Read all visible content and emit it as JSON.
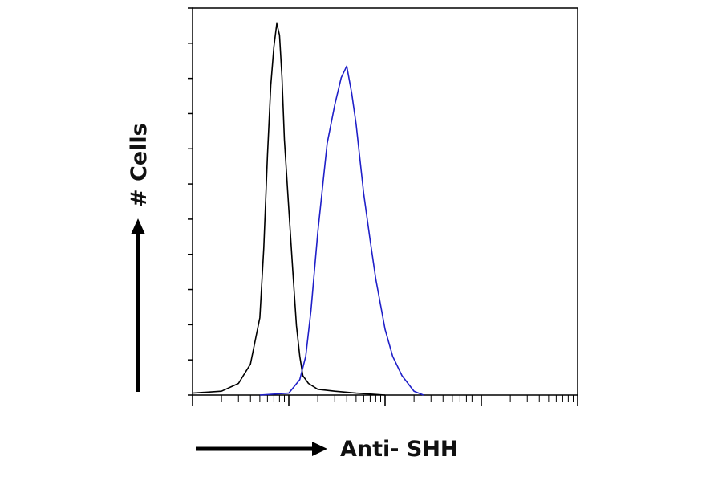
{
  "chart_data": {
    "type": "line",
    "title": "",
    "xlabel": "Anti- SHH",
    "ylabel": "# Cells",
    "x_scale": "log",
    "xlim": [
      1,
      10000
    ],
    "ylim": [
      0,
      100
    ],
    "grid": false,
    "legend": "none",
    "series": [
      {
        "color": "#000000",
        "x": [
          1,
          2,
          3,
          4,
          5,
          5.5,
          6,
          6.5,
          7,
          7.5,
          8,
          8.5,
          9,
          10,
          11,
          12,
          13,
          14,
          16,
          20,
          30,
          50,
          100
        ],
        "y": [
          0.5,
          1,
          3,
          8,
          20,
          38,
          62,
          80,
          90,
          96,
          93,
          82,
          66,
          48,
          32,
          18,
          10,
          5,
          3,
          1.5,
          1,
          0.5,
          0
        ]
      },
      {
        "color": "#1f1fc8",
        "x": [
          5,
          10,
          13,
          15,
          17,
          20,
          25,
          30,
          35,
          40,
          45,
          50,
          60,
          70,
          80,
          100,
          120,
          150,
          200,
          250
        ],
        "y": [
          0,
          0.5,
          4,
          10,
          22,
          42,
          65,
          75,
          82,
          85,
          78,
          70,
          52,
          40,
          30,
          17,
          10,
          5,
          1,
          0
        ]
      }
    ]
  }
}
